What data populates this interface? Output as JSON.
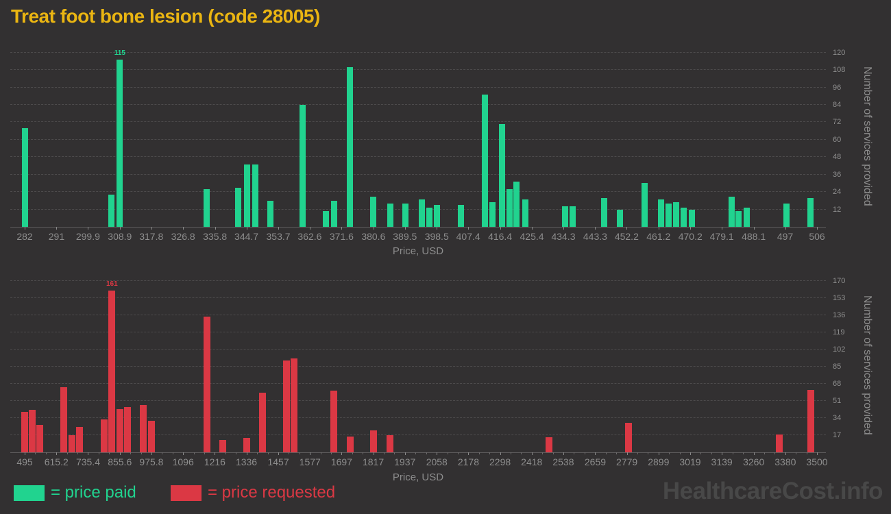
{
  "title": "Treat foot bone lesion (code 28005)",
  "watermark": "HealthcareCost.info",
  "colors": {
    "background": "#323031",
    "title": "#EAB512",
    "paid": "#21D38F",
    "requested": "#DB3844",
    "axis_text": "#8D8D8D",
    "gridline": "#4D4B4C",
    "watermark_text": "#484848"
  },
  "legend": [
    {
      "label": "= price paid",
      "color": "#21D38F"
    },
    {
      "label": "= price requested",
      "color": "#DB3844"
    }
  ],
  "chart_data": [
    {
      "type": "bar",
      "series_name": "price paid",
      "color": "#21D38F",
      "xlabel": "Price, USD",
      "ylabel": "Number of services provided",
      "grid": true,
      "legend_position": "bottom-left",
      "x_ticks": [
        "282",
        "291",
        "299.9",
        "308.9",
        "317.8",
        "326.8",
        "335.8",
        "344.7",
        "353.7",
        "362.6",
        "371.6",
        "380.6",
        "389.5",
        "398.5",
        "407.4",
        "416.4",
        "425.4",
        "434.3",
        "443.3",
        "452.2",
        "461.2",
        "470.2",
        "479.1",
        "488.1",
        "497",
        "506"
      ],
      "y_ticks": [
        12,
        24,
        36,
        48,
        60,
        72,
        84,
        96,
        108,
        120
      ],
      "y_max": 126,
      "max_label": "115",
      "points": [
        {
          "x": 282,
          "y": 68
        },
        {
          "x": 306.5,
          "y": 22
        },
        {
          "x": 308.9,
          "y": 115
        },
        {
          "x": 333.5,
          "y": 26
        },
        {
          "x": 342.3,
          "y": 27
        },
        {
          "x": 344.8,
          "y": 43
        },
        {
          "x": 347.2,
          "y": 43
        },
        {
          "x": 351.4,
          "y": 18
        },
        {
          "x": 360.6,
          "y": 84
        },
        {
          "x": 367.1,
          "y": 11
        },
        {
          "x": 369.4,
          "y": 18
        },
        {
          "x": 374,
          "y": 110
        },
        {
          "x": 380.6,
          "y": 21
        },
        {
          "x": 385.3,
          "y": 16
        },
        {
          "x": 389.7,
          "y": 16
        },
        {
          "x": 394.2,
          "y": 19
        },
        {
          "x": 396.5,
          "y": 13
        },
        {
          "x": 398.6,
          "y": 15
        },
        {
          "x": 405.4,
          "y": 15
        },
        {
          "x": 412.2,
          "y": 91
        },
        {
          "x": 414.3,
          "y": 17
        },
        {
          "x": 416.9,
          "y": 71
        },
        {
          "x": 419,
          "y": 26
        },
        {
          "x": 421.1,
          "y": 31
        },
        {
          "x": 423.5,
          "y": 19
        },
        {
          "x": 434.8,
          "y": 14
        },
        {
          "x": 436.9,
          "y": 14
        },
        {
          "x": 445.8,
          "y": 20
        },
        {
          "x": 450.3,
          "y": 12
        },
        {
          "x": 457.2,
          "y": 30
        },
        {
          "x": 461.9,
          "y": 19
        },
        {
          "x": 464.1,
          "y": 16
        },
        {
          "x": 466.2,
          "y": 17
        },
        {
          "x": 468.4,
          "y": 13
        },
        {
          "x": 470.6,
          "y": 12
        },
        {
          "x": 481.8,
          "y": 21
        },
        {
          "x": 483.9,
          "y": 11
        },
        {
          "x": 486.1,
          "y": 13
        },
        {
          "x": 497.3,
          "y": 16
        },
        {
          "x": 504.2,
          "y": 20
        }
      ]
    },
    {
      "type": "bar",
      "series_name": "price requested",
      "color": "#DB3844",
      "xlabel": "Price, USD",
      "ylabel": "Number of services provided",
      "grid": true,
      "legend_position": "bottom-left",
      "x_ticks": [
        "495",
        "615.2",
        "735.4",
        "855.6",
        "975.8",
        "1096",
        "1216",
        "1336",
        "1457",
        "1577",
        "1697",
        "1817",
        "1937",
        "2058",
        "2178",
        "2298",
        "2418",
        "2538",
        "2659",
        "2779",
        "2899",
        "3019",
        "3139",
        "3260",
        "3380",
        "3500"
      ],
      "y_ticks": [
        17,
        34,
        51,
        68,
        85,
        102,
        119,
        136,
        153,
        170
      ],
      "y_max": 175,
      "max_label": "161",
      "points": [
        {
          "x": 495,
          "y": 40
        },
        {
          "x": 523,
          "y": 42
        },
        {
          "x": 553,
          "y": 27
        },
        {
          "x": 644,
          "y": 65
        },
        {
          "x": 674,
          "y": 17
        },
        {
          "x": 703,
          "y": 25
        },
        {
          "x": 796,
          "y": 33
        },
        {
          "x": 826,
          "y": 161
        },
        {
          "x": 855.6,
          "y": 43
        },
        {
          "x": 885,
          "y": 45
        },
        {
          "x": 945,
          "y": 47
        },
        {
          "x": 976,
          "y": 31
        },
        {
          "x": 1187,
          "y": 135
        },
        {
          "x": 1246,
          "y": 12
        },
        {
          "x": 1337,
          "y": 14
        },
        {
          "x": 1397,
          "y": 59
        },
        {
          "x": 1489,
          "y": 91
        },
        {
          "x": 1517,
          "y": 93
        },
        {
          "x": 1668,
          "y": 61
        },
        {
          "x": 1729,
          "y": 16
        },
        {
          "x": 1818,
          "y": 22
        },
        {
          "x": 1881,
          "y": 17
        },
        {
          "x": 2484,
          "y": 15
        },
        {
          "x": 2786,
          "y": 29
        },
        {
          "x": 3358,
          "y": 18
        },
        {
          "x": 3477,
          "y": 62
        }
      ]
    }
  ]
}
